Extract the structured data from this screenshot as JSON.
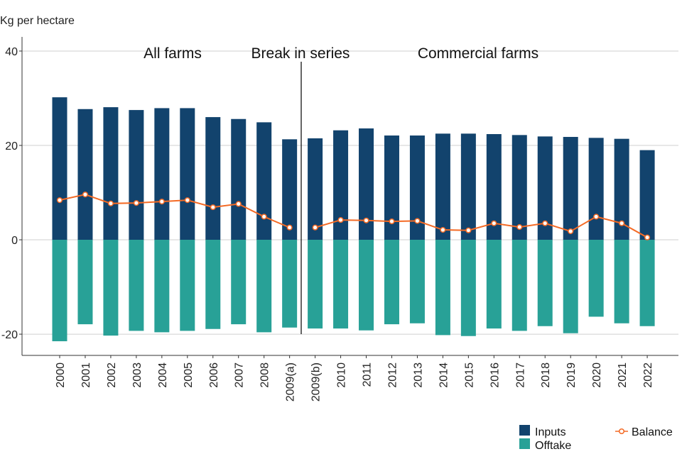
{
  "chart_data": {
    "type": "bar",
    "ylabel": "Kg per hectare",
    "ylim": [
      -24.5,
      43
    ],
    "yticks": [
      -20,
      0,
      20,
      40
    ],
    "categories": [
      "2000",
      "2001",
      "2002",
      "2003",
      "2004",
      "2005",
      "2006",
      "2007",
      "2008",
      "2009(a)",
      "2009(b)",
      "2010",
      "2011",
      "2012",
      "2013",
      "2014",
      "2015",
      "2016",
      "2017",
      "2018",
      "2019",
      "2020",
      "2021",
      "2022"
    ],
    "series": [
      {
        "name": "Inputs",
        "type": "bar",
        "color": "#12436d",
        "values": [
          30.2,
          27.7,
          28.1,
          27.5,
          27.9,
          27.9,
          26.0,
          25.6,
          24.9,
          21.3,
          21.5,
          23.2,
          23.6,
          22.1,
          22.1,
          22.5,
          22.5,
          22.4,
          22.2,
          21.9,
          21.8,
          21.6,
          21.4,
          19.0
        ]
      },
      {
        "name": "Offtake",
        "type": "bar",
        "color": "#28a197",
        "values": [
          -21.5,
          -17.9,
          -20.3,
          -19.3,
          -19.6,
          -19.3,
          -18.9,
          -17.9,
          -19.6,
          -18.6,
          -18.8,
          -18.8,
          -19.2,
          -17.9,
          -17.7,
          -20.2,
          -20.4,
          -18.8,
          -19.3,
          -18.3,
          -19.8,
          -16.3,
          -17.7,
          -18.3
        ]
      },
      {
        "name": "Balance",
        "type": "line",
        "color": "#f46a25",
        "values": [
          8.4,
          9.6,
          7.7,
          7.8,
          8.1,
          8.4,
          6.9,
          7.6,
          4.9,
          2.6,
          2.6,
          4.2,
          4.1,
          3.9,
          4.0,
          2.1,
          2.0,
          3.5,
          2.7,
          3.5,
          1.8,
          4.9,
          3.5,
          0.5
        ]
      }
    ],
    "annotations": [
      "All farms",
      "Break in series",
      "Commercial farms"
    ],
    "legend_position": "bottom-right",
    "grid": true
  }
}
